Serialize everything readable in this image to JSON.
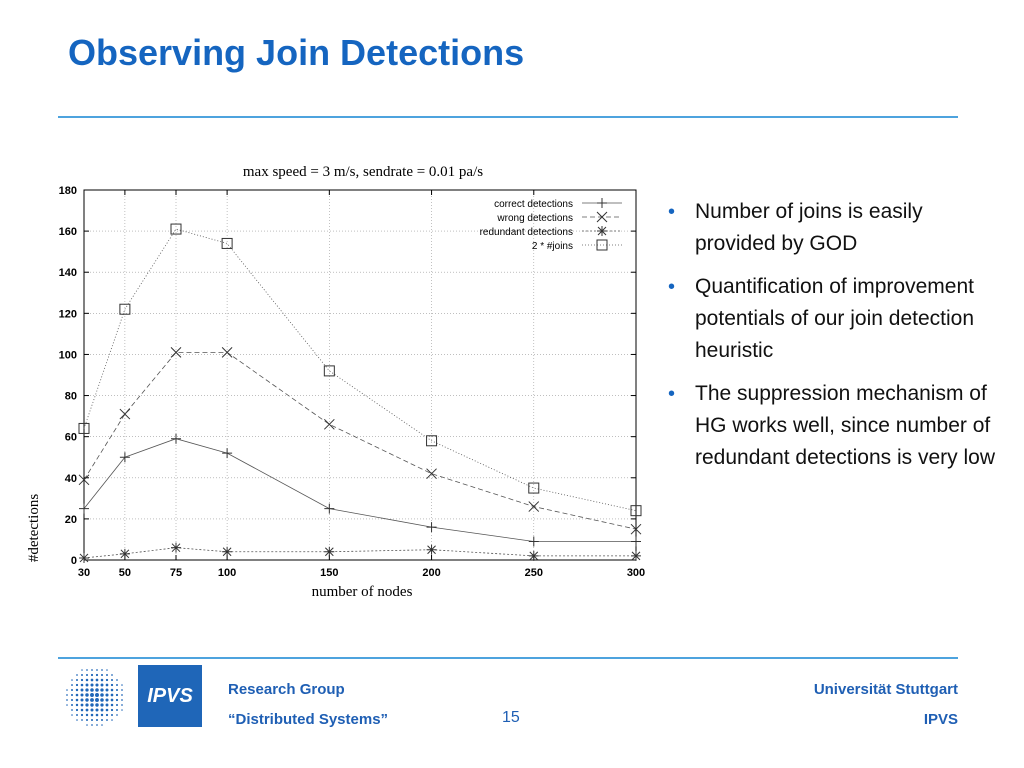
{
  "slide": {
    "title": "Observing Join Detections",
    "bullets": [
      "Number of joins is easily provided by GOD",
      "Quantification of improvement potentials of our join detection heuristic",
      "The suppression mechanism of HG works well, since number of redundant detections is very low"
    ]
  },
  "footer": {
    "logo_text": "IPVS",
    "left_line1": "Research Group",
    "left_line2": "“Distributed Systems”",
    "page_number": "15",
    "right_line1": "Universität Stuttgart",
    "right_line2": "IPVS"
  },
  "colors": {
    "title": "#1565c0",
    "rule": "#4da3de",
    "footer_text": "#1f5fb4",
    "logo_box": "#1f66b8"
  },
  "chart_data": {
    "type": "line",
    "title": "max speed = 3 m/s, sendrate = 0.01 pa/s",
    "xlabel": "number of nodes",
    "ylabel": "#detections",
    "x": [
      30,
      50,
      75,
      100,
      150,
      200,
      250,
      300
    ],
    "x_ticks": [
      "30",
      "50",
      "75",
      "100",
      "150",
      "200",
      "250",
      "300"
    ],
    "y_ticks": [
      "0",
      "20",
      "40",
      "60",
      "80",
      "100",
      "120",
      "140",
      "160",
      "180"
    ],
    "xlim": [
      30,
      300
    ],
    "ylim": [
      0,
      180
    ],
    "grid": true,
    "legend_position": "top-right",
    "series": [
      {
        "name": "correct detections",
        "marker": "plus",
        "dash": "none",
        "values": [
          25,
          50,
          59,
          52,
          25,
          16,
          9,
          9
        ]
      },
      {
        "name": "wrong detections",
        "marker": "cross",
        "dash": "5,3",
        "values": [
          39,
          71,
          101,
          101,
          66,
          42,
          26,
          15
        ]
      },
      {
        "name": "redundant detections",
        "marker": "star",
        "dash": "2,2",
        "values": [
          1,
          3,
          6,
          4,
          4,
          5,
          2,
          2
        ]
      },
      {
        "name": "2 * #joins",
        "marker": "square",
        "dash": "1,2",
        "values": [
          64,
          122,
          161,
          154,
          92,
          58,
          35,
          24
        ]
      }
    ]
  }
}
